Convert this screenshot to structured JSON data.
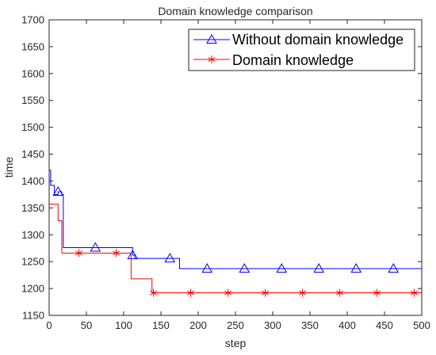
{
  "chart_data": {
    "type": "line",
    "title": "Domain knowledge comparison",
    "xlabel": "step",
    "ylabel": "time",
    "xlim": [
      0,
      500
    ],
    "ylim": [
      1150,
      1700
    ],
    "xticks": [
      0,
      50,
      100,
      150,
      200,
      250,
      300,
      350,
      400,
      450,
      500
    ],
    "yticks": [
      1150,
      1200,
      1250,
      1300,
      1350,
      1400,
      1450,
      1500,
      1550,
      1600,
      1650,
      1700
    ],
    "grid": false,
    "legend_location": "top-right",
    "series": [
      {
        "name": "Without domain knowledge",
        "color": "#0000ff",
        "marker": "triangle",
        "steps": [
          [
            0,
            1420
          ],
          [
            2,
            1392
          ],
          [
            7,
            1375
          ],
          [
            12,
            1380
          ],
          [
            17,
            1375
          ],
          [
            19,
            1276
          ],
          [
            112,
            1262
          ],
          [
            115,
            1256
          ],
          [
            175,
            1237
          ],
          [
            500,
            1237
          ]
        ],
        "marker_x": [
          12,
          62,
          112,
          162,
          212,
          262,
          312,
          362,
          412,
          462
        ]
      },
      {
        "name": "Domain knowledge",
        "color": "#ff0000",
        "marker": "asterisk",
        "steps": [
          [
            0,
            1357
          ],
          [
            12,
            1326
          ],
          [
            17,
            1266
          ],
          [
            110,
            1218
          ],
          [
            138,
            1192
          ],
          [
            500,
            1192
          ]
        ],
        "marker_x": [
          40,
          90,
          140,
          190,
          240,
          290,
          340,
          390,
          440,
          490
        ]
      }
    ]
  }
}
